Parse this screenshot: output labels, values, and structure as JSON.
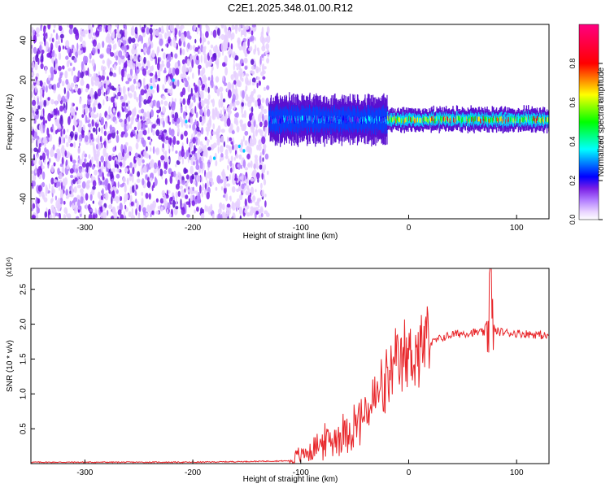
{
  "title": "C2E1.2025.348.01.00.R12",
  "chart_data": [
    {
      "type": "heatmap",
      "xlabel": "Height of straight line (km)",
      "ylabel": "Frequency (Hz)",
      "xlim": [
        -350,
        130
      ],
      "ylim": [
        -50,
        48
      ],
      "xticks": [
        -300,
        -200,
        -100,
        0,
        100
      ],
      "yticks": [
        -40,
        -20,
        0,
        20,
        40
      ],
      "colorbar": {
        "label": "Normalized spectral amplitude",
        "range": [
          0,
          1
        ],
        "ticks": [
          0.0,
          0.2,
          0.4,
          0.6,
          0.8
        ],
        "colors": [
          "#ffffff",
          "#e9d4ff",
          "#b17cff",
          "#7a1fe6",
          "#0000ff",
          "#00ffff",
          "#00ff00",
          "#ffff00",
          "#ff0000",
          "#ff0080"
        ]
      },
      "regions": [
        {
          "x": [
            -350,
            -130
          ],
          "f_range": [
            -50,
            48
          ],
          "amplitude": 0.2,
          "pattern": "noise"
        },
        {
          "x": [
            -130,
            -20
          ],
          "f_center": 0,
          "f_width": 10,
          "amplitude": 0.55
        },
        {
          "x": [
            -20,
            130
          ],
          "f_center": 0,
          "f_width": 5,
          "amplitude": 0.85
        }
      ]
    },
    {
      "type": "line",
      "xlabel": "Height of straight line (km)",
      "ylabel": "SNR (10 * v/v)",
      "y_multiplier": "(x10⁴)",
      "xlim": [
        -350,
        130
      ],
      "ylim": [
        0,
        2.8
      ],
      "xticks": [
        -300,
        -200,
        -100,
        0,
        100
      ],
      "yticks": [
        0.5,
        1.0,
        1.5,
        2.0,
        2.5
      ],
      "series": [
        {
          "color": "#e8262a",
          "x": [
            -350,
            -300,
            -250,
            -200,
            -150,
            -110,
            -100,
            -90,
            -80,
            -70,
            -60,
            -50,
            -40,
            -30,
            -20,
            -10,
            0,
            10,
            20,
            30,
            40,
            50,
            60,
            70,
            75,
            80,
            90,
            100,
            110,
            120,
            130
          ],
          "y": [
            0.02,
            0.02,
            0.02,
            0.02,
            0.03,
            0.04,
            0.12,
            0.2,
            0.3,
            0.35,
            0.45,
            0.55,
            0.7,
            0.95,
            1.15,
            1.4,
            1.55,
            1.65,
            1.72,
            1.8,
            1.85,
            1.87,
            1.88,
            1.88,
            2.15,
            1.9,
            1.88,
            1.87,
            1.86,
            1.85,
            1.82
          ],
          "y_peak": {
            "x": 76,
            "y": 2.78
          }
        }
      ]
    }
  ]
}
